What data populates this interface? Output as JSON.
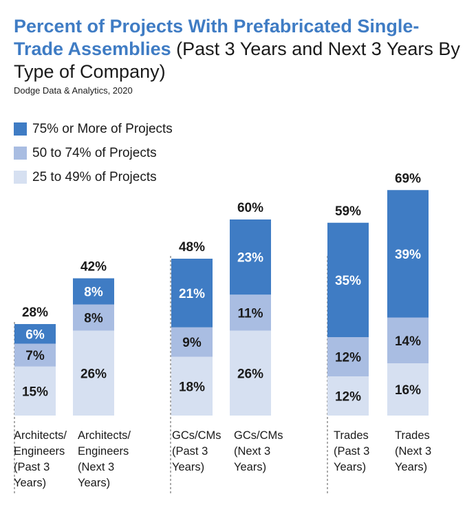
{
  "title": {
    "bold_part": "Percent of Projects With Prefabricated Single-Trade Assemblies",
    "rest_part": "(Past 3 Years and Next 3 Years By Type of Company)"
  },
  "source": "Dodge Data & Analytics, 2020",
  "legend": [
    {
      "label": "75% or More of Projects",
      "color": "#3f7cc4"
    },
    {
      "label": "50 to 74% of Projects",
      "color": "#a9bde2"
    },
    {
      "label": "25 to 49% of Projects",
      "color": "#d6e0f1"
    }
  ],
  "chart_data": {
    "type": "bar",
    "stacked": true,
    "categories": [
      [
        "Architects/",
        "Engineers",
        "(Past 3",
        "Years)"
      ],
      [
        "Architects/",
        "Engineers",
        "(Next 3",
        "Years)"
      ],
      [
        "GCs/CMs",
        "(Past 3",
        "Years)"
      ],
      [
        "GCs/CMs",
        "(Next 3",
        "Years)"
      ],
      [
        "Trades",
        "(Past 3",
        "Years)"
      ],
      [
        "Trades",
        "(Next 3",
        "Years)"
      ]
    ],
    "series": [
      {
        "name": "25 to 49% of Projects",
        "color": "#d6e0f1",
        "values": [
          15,
          26,
          18,
          26,
          12,
          16
        ]
      },
      {
        "name": "50 to 74% of Projects",
        "color": "#a9bde2",
        "values": [
          7,
          8,
          9,
          11,
          12,
          14
        ]
      },
      {
        "name": "75% or More of Projects",
        "color": "#3f7cc4",
        "values": [
          6,
          8,
          21,
          23,
          35,
          39
        ]
      }
    ],
    "totals": [
      28,
      42,
      48,
      60,
      59,
      69
    ],
    "unit": "%",
    "groups": [
      "Architects/Engineers",
      "GCs/CMs",
      "Trades"
    ],
    "ylim": [
      0,
      69
    ],
    "grid": false
  }
}
